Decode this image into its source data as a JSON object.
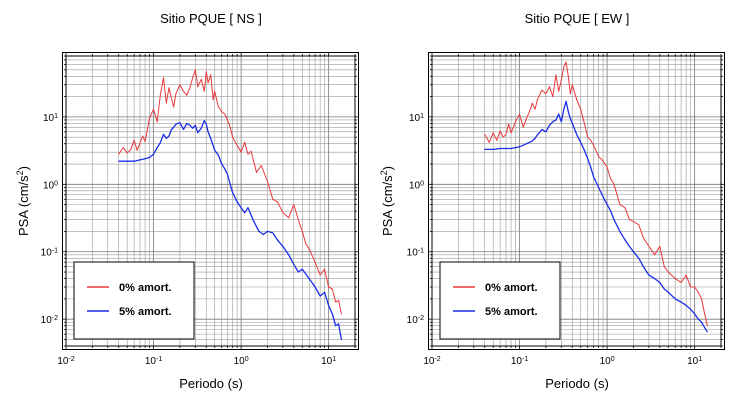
{
  "chart_data": [
    {
      "type": "line",
      "title": "Sitio PQUE [ NS ]",
      "xlabel": "Periodo (s)",
      "ylabel": "PSA (cm/s²)",
      "xscale": "log",
      "yscale": "log",
      "xlim": [
        0.01,
        20
      ],
      "ylim": [
        0.004,
        80
      ],
      "grid": true,
      "legend_position": "bottom-left",
      "x_ticks": [
        {
          "value": 0.01,
          "base": "10",
          "exp": "-2"
        },
        {
          "value": 0.1,
          "base": "10",
          "exp": "-1"
        },
        {
          "value": 1,
          "base": "10",
          "exp": "0"
        },
        {
          "value": 10,
          "base": "10",
          "exp": "1"
        }
      ],
      "y_ticks": [
        {
          "value": 0.01,
          "base": "10",
          "exp": "-2"
        },
        {
          "value": 0.1,
          "base": "10",
          "exp": "-1"
        },
        {
          "value": 1,
          "base": "10",
          "exp": "0"
        },
        {
          "value": 10,
          "base": "10",
          "exp": "1"
        }
      ],
      "series": [
        {
          "name": "0% amort.",
          "color": "#e8393b",
          "x": [
            0.04,
            0.045,
            0.05,
            0.055,
            0.06,
            0.065,
            0.07,
            0.075,
            0.08,
            0.085,
            0.09,
            0.1,
            0.11,
            0.12,
            0.13,
            0.14,
            0.15,
            0.16,
            0.17,
            0.18,
            0.2,
            0.22,
            0.24,
            0.26,
            0.28,
            0.3,
            0.32,
            0.35,
            0.38,
            0.4,
            0.42,
            0.45,
            0.48,
            0.5,
            0.55,
            0.6,
            0.65,
            0.7,
            0.75,
            0.8,
            0.9,
            1.0,
            1.1,
            1.2,
            1.3,
            1.5,
            1.7,
            2.0,
            2.3,
            2.6,
            3.0,
            3.5,
            4.0,
            4.5,
            5.0,
            5.5,
            6.0,
            7.0,
            8.0,
            9.0,
            10.0,
            11.0,
            12.0,
            13.0,
            14.0
          ],
          "values": [
            2.8,
            3.5,
            2.9,
            3.3,
            4.5,
            3.2,
            4.1,
            5.2,
            4.3,
            6.5,
            9.5,
            13,
            8.5,
            22,
            38,
            16,
            27,
            19,
            14,
            22,
            30,
            24,
            21,
            27,
            38,
            50,
            28,
            36,
            24,
            47,
            32,
            42,
            18,
            24,
            14,
            12,
            11,
            9,
            7,
            5,
            3.8,
            3.0,
            4.2,
            2.8,
            3.1,
            1.5,
            1.9,
            1.1,
            0.6,
            0.55,
            0.38,
            0.32,
            0.5,
            0.3,
            0.2,
            0.13,
            0.11,
            0.07,
            0.045,
            0.055,
            0.03,
            0.028,
            0.018,
            0.019,
            0.012
          ]
        },
        {
          "name": "5% amort.",
          "color": "#1a2ee8",
          "x": [
            0.04,
            0.05,
            0.06,
            0.07,
            0.08,
            0.09,
            0.1,
            0.11,
            0.12,
            0.13,
            0.14,
            0.15,
            0.16,
            0.17,
            0.18,
            0.2,
            0.22,
            0.24,
            0.26,
            0.28,
            0.3,
            0.32,
            0.35,
            0.38,
            0.4,
            0.42,
            0.45,
            0.5,
            0.55,
            0.6,
            0.65,
            0.7,
            0.75,
            0.8,
            0.9,
            1.0,
            1.1,
            1.2,
            1.4,
            1.6,
            1.8,
            2.0,
            2.3,
            2.6,
            3.0,
            3.5,
            4.0,
            4.5,
            5.0,
            6.0,
            7.0,
            8.0,
            9.0,
            10.0,
            11.0,
            12.0,
            13.0,
            14.0
          ],
          "values": [
            2.2,
            2.2,
            2.2,
            2.3,
            2.4,
            2.5,
            2.8,
            3.5,
            4.2,
            5.5,
            4.8,
            5.2,
            6.5,
            7.0,
            7.8,
            8.2,
            6.5,
            8.0,
            7.5,
            6.8,
            7.5,
            5.8,
            6.8,
            8.8,
            7.8,
            6.0,
            4.8,
            3.2,
            2.7,
            2.0,
            1.7,
            1.4,
            1.0,
            0.75,
            0.55,
            0.45,
            0.38,
            0.45,
            0.28,
            0.2,
            0.18,
            0.2,
            0.19,
            0.15,
            0.12,
            0.09,
            0.065,
            0.05,
            0.055,
            0.04,
            0.03,
            0.022,
            0.025,
            0.016,
            0.012,
            0.008,
            0.0085,
            0.005
          ]
        }
      ]
    },
    {
      "type": "line",
      "title": "Sitio PQUE [ EW ]",
      "xlabel": "Periodo (s)",
      "ylabel": "PSA (cm/s²)",
      "xscale": "log",
      "yscale": "log",
      "xlim": [
        0.01,
        20
      ],
      "ylim": [
        0.004,
        80
      ],
      "grid": true,
      "legend_position": "bottom-left",
      "x_ticks": [
        {
          "value": 0.01,
          "base": "10",
          "exp": "-2"
        },
        {
          "value": 0.1,
          "base": "10",
          "exp": "-1"
        },
        {
          "value": 1,
          "base": "10",
          "exp": "0"
        },
        {
          "value": 10,
          "base": "10",
          "exp": "1"
        }
      ],
      "y_ticks": [
        {
          "value": 0.01,
          "base": "10",
          "exp": "-2"
        },
        {
          "value": 0.1,
          "base": "10",
          "exp": "-1"
        },
        {
          "value": 1,
          "base": "10",
          "exp": "0"
        },
        {
          "value": 10,
          "base": "10",
          "exp": "1"
        }
      ],
      "series": [
        {
          "name": "0% amort.",
          "color": "#e8393b",
          "x": [
            0.04,
            0.045,
            0.05,
            0.055,
            0.06,
            0.065,
            0.07,
            0.075,
            0.08,
            0.09,
            0.1,
            0.11,
            0.12,
            0.13,
            0.14,
            0.15,
            0.16,
            0.18,
            0.2,
            0.22,
            0.24,
            0.26,
            0.28,
            0.3,
            0.32,
            0.34,
            0.36,
            0.38,
            0.4,
            0.45,
            0.5,
            0.55,
            0.6,
            0.65,
            0.7,
            0.8,
            0.9,
            1.0,
            1.1,
            1.2,
            1.4,
            1.6,
            1.8,
            2.0,
            2.3,
            2.6,
            3.0,
            3.5,
            4.0,
            4.5,
            5.0,
            6.0,
            7.0,
            8.0,
            9.0,
            10.0,
            11.0,
            12.0,
            13.0,
            14.0
          ],
          "values": [
            5.5,
            4.2,
            5.8,
            4.5,
            6.2,
            5.0,
            5.5,
            7.8,
            5.8,
            8.5,
            11,
            7.0,
            9.5,
            12,
            16,
            13,
            18,
            25,
            22,
            28,
            20,
            42,
            24,
            35,
            55,
            65,
            40,
            22,
            30,
            18,
            13,
            8,
            5,
            4.5,
            3.8,
            2.6,
            2.2,
            1.8,
            1.2,
            1.0,
            0.5,
            0.45,
            0.3,
            0.28,
            0.25,
            0.16,
            0.12,
            0.09,
            0.12,
            0.06,
            0.05,
            0.04,
            0.035,
            0.045,
            0.03,
            0.03,
            0.025,
            0.02,
            0.012,
            0.008
          ]
        },
        {
          "name": "5% amort.",
          "color": "#1a2ee8",
          "x": [
            0.04,
            0.05,
            0.06,
            0.07,
            0.08,
            0.09,
            0.1,
            0.11,
            0.12,
            0.13,
            0.14,
            0.15,
            0.16,
            0.18,
            0.2,
            0.22,
            0.24,
            0.26,
            0.28,
            0.3,
            0.32,
            0.34,
            0.36,
            0.38,
            0.4,
            0.45,
            0.5,
            0.55,
            0.6,
            0.65,
            0.7,
            0.8,
            0.9,
            1.0,
            1.1,
            1.2,
            1.4,
            1.6,
            1.8,
            2.0,
            2.3,
            2.6,
            3.0,
            3.5,
            4.0,
            4.5,
            5.0,
            6.0,
            7.0,
            8.0,
            9.0,
            10.0,
            11.0,
            12.0,
            13.0,
            14.0
          ],
          "values": [
            3.3,
            3.3,
            3.4,
            3.4,
            3.4,
            3.5,
            3.6,
            3.8,
            4.0,
            4.2,
            4.4,
            4.8,
            5.4,
            6.5,
            6.0,
            7.5,
            8.5,
            9.0,
            11,
            8.5,
            13,
            17,
            12,
            9.5,
            8.0,
            5.5,
            4.2,
            3.2,
            2.4,
            1.8,
            1.3,
            0.9,
            0.65,
            0.5,
            0.4,
            0.3,
            0.2,
            0.15,
            0.12,
            0.1,
            0.08,
            0.06,
            0.045,
            0.04,
            0.035,
            0.028,
            0.025,
            0.02,
            0.018,
            0.016,
            0.014,
            0.012,
            0.01,
            0.009,
            0.0075,
            0.0065
          ]
        }
      ]
    }
  ]
}
